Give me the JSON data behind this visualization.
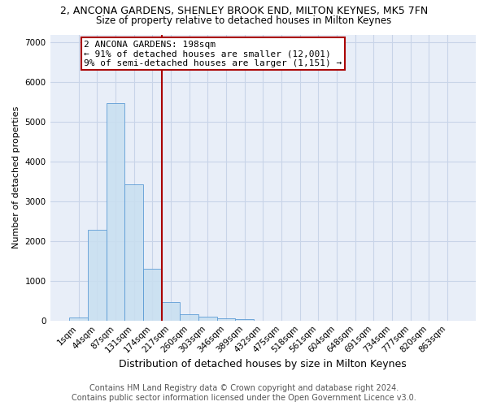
{
  "title": "2, ANCONA GARDENS, SHENLEY BROOK END, MILTON KEYNES, MK5 7FN",
  "subtitle": "Size of property relative to detached houses in Milton Keynes",
  "xlabel": "Distribution of detached houses by size in Milton Keynes",
  "ylabel": "Number of detached properties",
  "footer_line1": "Contains HM Land Registry data © Crown copyright and database right 2024.",
  "footer_line2": "Contains public sector information licensed under the Open Government Licence v3.0.",
  "categories": [
    "1sqm",
    "44sqm",
    "87sqm",
    "131sqm",
    "174sqm",
    "217sqm",
    "260sqm",
    "303sqm",
    "346sqm",
    "389sqm",
    "432sqm",
    "475sqm",
    "518sqm",
    "561sqm",
    "604sqm",
    "648sqm",
    "691sqm",
    "734sqm",
    "777sqm",
    "820sqm",
    "863sqm"
  ],
  "values": [
    75,
    2280,
    5470,
    3430,
    1310,
    460,
    165,
    105,
    65,
    35,
    0,
    0,
    0,
    0,
    0,
    0,
    0,
    0,
    0,
    0,
    0
  ],
  "bar_color": "#c8dff0",
  "bar_edge_color": "#5b9bd5",
  "bar_alpha": 0.85,
  "vline_x": 4.5,
  "vline_color": "#aa0000",
  "annotation_text": "2 ANCONA GARDENS: 198sqm\n← 91% of detached houses are smaller (12,001)\n9% of semi-detached houses are larger (1,151) →",
  "box_color": "#ffffff",
  "box_edge_color": "#aa0000",
  "ylim": [
    0,
    7200
  ],
  "yticks": [
    0,
    1000,
    2000,
    3000,
    4000,
    5000,
    6000,
    7000
  ],
  "grid_color": "#c8d4e8",
  "bg_color": "#e8eef8",
  "title_fontsize": 9,
  "subtitle_fontsize": 8.5,
  "xlabel_fontsize": 9,
  "ylabel_fontsize": 8,
  "tick_fontsize": 7.5,
  "annotation_fontsize": 8,
  "footer_fontsize": 7
}
